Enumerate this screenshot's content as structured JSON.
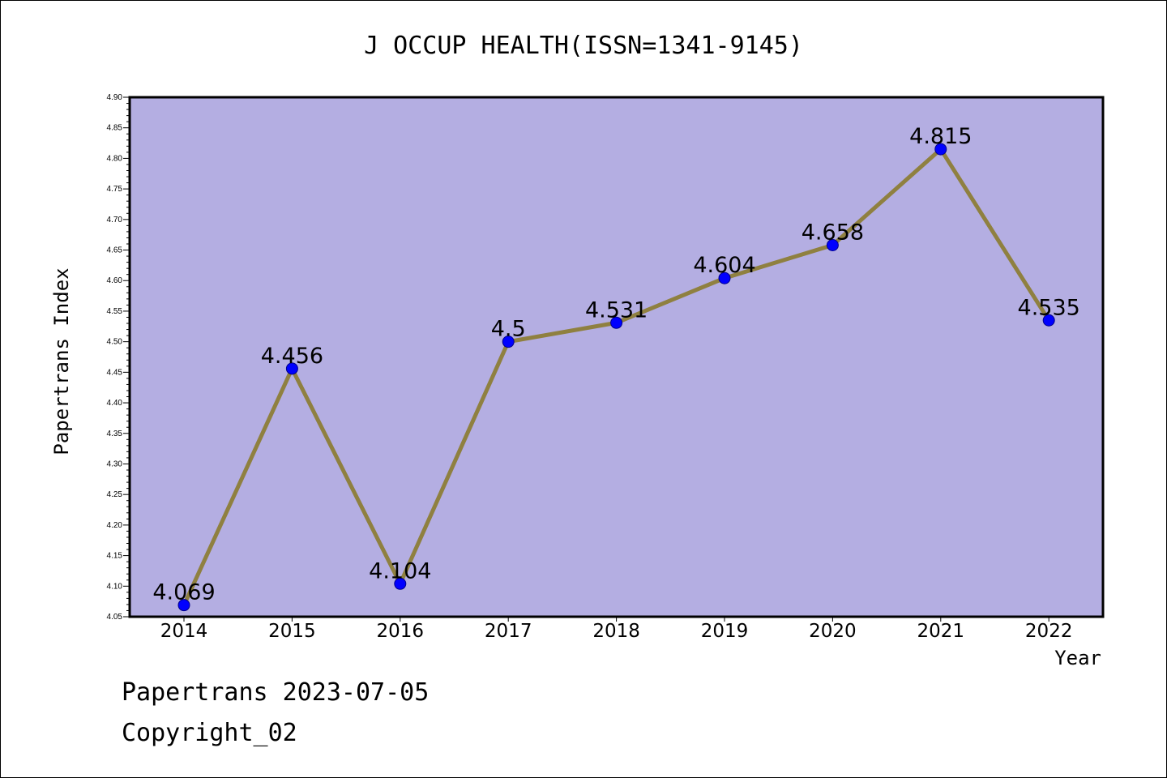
{
  "footer": {
    "line1": "Papertrans 2023-07-05",
    "line2": "Copyright_02"
  },
  "colors": {
    "plot_background": "#b4aee2",
    "line": "#8f8040",
    "marker": "#0000ff"
  },
  "chart_data": {
    "type": "line",
    "title": "J OCCUP HEALTH(ISSN=1341-9145)",
    "xlabel": "Year",
    "ylabel": "Papertrans Index",
    "categories": [
      "2014",
      "2015",
      "2016",
      "2017",
      "2018",
      "2019",
      "2020",
      "2021",
      "2022"
    ],
    "series": [
      {
        "values": [
          4.069,
          4.456,
          4.104,
          4.5,
          4.531,
          4.604,
          4.658,
          4.815,
          4.535
        ],
        "labels": [
          "4.069",
          "4.456",
          "4.104",
          "4.5",
          "4.531",
          "4.604",
          "4.658",
          "4.815",
          "4.535"
        ]
      }
    ],
    "ylim": [
      4.05,
      4.9
    ],
    "yticks": [
      "4.05",
      "4.10",
      "4.15",
      "4.20",
      "4.25",
      "4.30",
      "4.35",
      "4.40",
      "4.45",
      "4.50",
      "4.55",
      "4.60",
      "4.65",
      "4.70",
      "4.75",
      "4.80",
      "4.85",
      "4.90"
    ],
    "grid": false,
    "legend": "none"
  }
}
